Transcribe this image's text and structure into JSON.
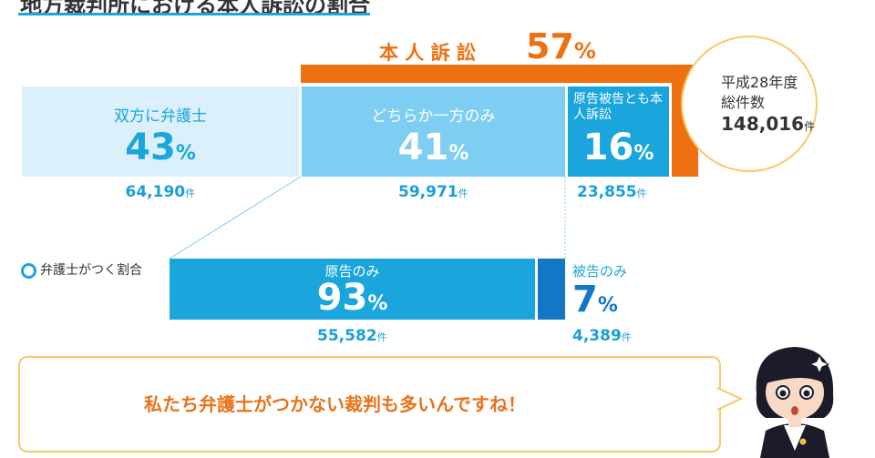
{
  "title": "地方裁判所における本人訴訟の割合",
  "honnin": {
    "label": "本 人 訴 訟",
    "pct": "57",
    "pct_sym": "%"
  },
  "total": {
    "line1": "平成28年度",
    "line2": "総件数",
    "count": "148,016",
    "unit": "件"
  },
  "lawyer_ratio_label": "弁護士がつく割合",
  "message": "私たち弁護士がつかない裁判も多いんですね！",
  "colors": {
    "light_blue": "#dbf0fb",
    "mid_blue": "#7ecdf2",
    "blue": "#1aa6dd",
    "dark_blue": "#1277c4",
    "orange": "#ee7111",
    "yellow": "#f7c96b"
  },
  "chart_data": [
    {
      "type": "bar",
      "title": "",
      "categories": [
        "双方に弁護士",
        "どちらか一方のみ",
        "原告被告とも本人訴訟"
      ],
      "values": [
        43,
        41,
        16
      ],
      "counts": [
        "64,190",
        "59,971",
        "23,855"
      ],
      "unit": "件",
      "pct_unit": "%"
    },
    {
      "type": "bar",
      "title": "",
      "categories": [
        "原告のみ",
        "被告のみ"
      ],
      "values": [
        93,
        7
      ],
      "counts": [
        "55,582",
        "4,389"
      ],
      "unit": "件",
      "pct_unit": "%"
    }
  ]
}
